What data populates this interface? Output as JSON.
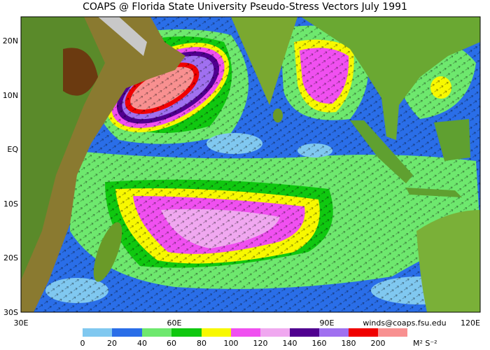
{
  "title": "COAPS @ Florida State University Pseudo-Stress Vectors  July 1991",
  "lat_labels": [
    "20N",
    "10N",
    "EQ",
    "10S",
    "20S",
    "30S"
  ],
  "lon_labels": [
    "30E",
    "60E",
    "90E",
    "120E"
  ],
  "credit": "winds@coaps.fsu.edu",
  "legend": {
    "labels": [
      "0",
      "20",
      "40",
      "60",
      "80",
      "100",
      "120",
      "140",
      "160",
      "180",
      "200"
    ],
    "unit": "M² S⁻²"
  }
}
